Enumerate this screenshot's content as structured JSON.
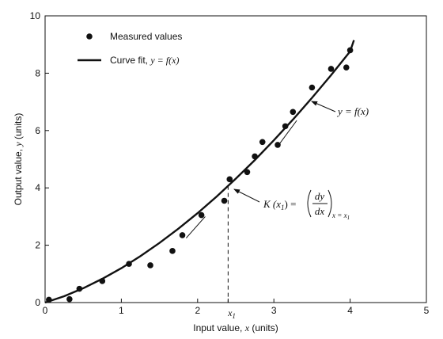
{
  "chart_data": {
    "type": "scatter",
    "xlabel_prefix": "Input value, ",
    "xlabel_var": "x",
    "xlabel_suffix": " (units)",
    "ylabel_prefix": "Output value, ",
    "ylabel_var": "y",
    "ylabel_suffix": " (units)",
    "xlim": [
      0,
      5
    ],
    "ylim": [
      0,
      10
    ],
    "xticks": [
      0,
      1,
      2,
      3,
      4,
      5
    ],
    "yticks": [
      0,
      2,
      4,
      6,
      8,
      10
    ],
    "x1_label": "x",
    "x1_sub": "1",
    "x1_value": 2.4,
    "grid": false,
    "legend": {
      "placement": "top-left",
      "entries": [
        {
          "marker": "dot",
          "label": "Measured values"
        },
        {
          "marker": "line",
          "label_prefix": "Curve fit, ",
          "label_math": "y = f(x)"
        }
      ]
    },
    "annotations": {
      "curve_label": "y = f(x)",
      "slope_label": "K (x₁) = (dy/dx)ₓ₌ₓ₁",
      "slope_lhs": "K (x",
      "slope_lhs_sub": "1",
      "slope_lhs_close": ") =",
      "frac_num": "dy",
      "frac_den": "dx",
      "frac_sub": "x = x",
      "frac_sub_sub": "1"
    },
    "series": [
      {
        "label": "Measured values",
        "kind": "scatter",
        "points": [
          [
            0.05,
            0.1
          ],
          [
            0.32,
            0.12
          ],
          [
            0.45,
            0.48
          ],
          [
            0.75,
            0.75
          ],
          [
            1.1,
            1.35
          ],
          [
            1.38,
            1.3
          ],
          [
            1.67,
            1.8
          ],
          [
            1.8,
            2.35
          ],
          [
            2.05,
            3.05
          ],
          [
            2.35,
            3.55
          ],
          [
            2.42,
            4.3
          ],
          [
            2.65,
            4.55
          ],
          [
            2.75,
            5.1
          ],
          [
            2.85,
            5.6
          ],
          [
            3.05,
            5.5
          ],
          [
            3.15,
            6.15
          ],
          [
            3.25,
            6.65
          ],
          [
            3.5,
            7.5
          ],
          [
            3.75,
            8.15
          ],
          [
            3.95,
            8.2
          ],
          [
            4.0,
            8.8
          ]
        ]
      },
      {
        "label": "Curve fit",
        "kind": "line",
        "x": [
          0,
          0.25,
          0.5,
          0.75,
          1.0,
          1.25,
          1.5,
          1.75,
          2.0,
          2.25,
          2.5,
          2.75,
          3.0,
          3.25,
          3.5,
          3.75,
          4.0,
          4.05
        ],
        "y": [
          0,
          0.22,
          0.5,
          0.83,
          1.2,
          1.62,
          2.08,
          2.58,
          3.12,
          3.7,
          4.32,
          4.97,
          5.66,
          6.38,
          7.14,
          7.93,
          8.76,
          9.15
        ]
      }
    ],
    "tangents": [
      {
        "x": [
          1.85,
          2.1
        ],
        "y": [
          2.25,
          3.0
        ]
      },
      {
        "x": [
          3.05,
          3.3
        ],
        "y": [
          5.45,
          6.35
        ]
      }
    ]
  }
}
